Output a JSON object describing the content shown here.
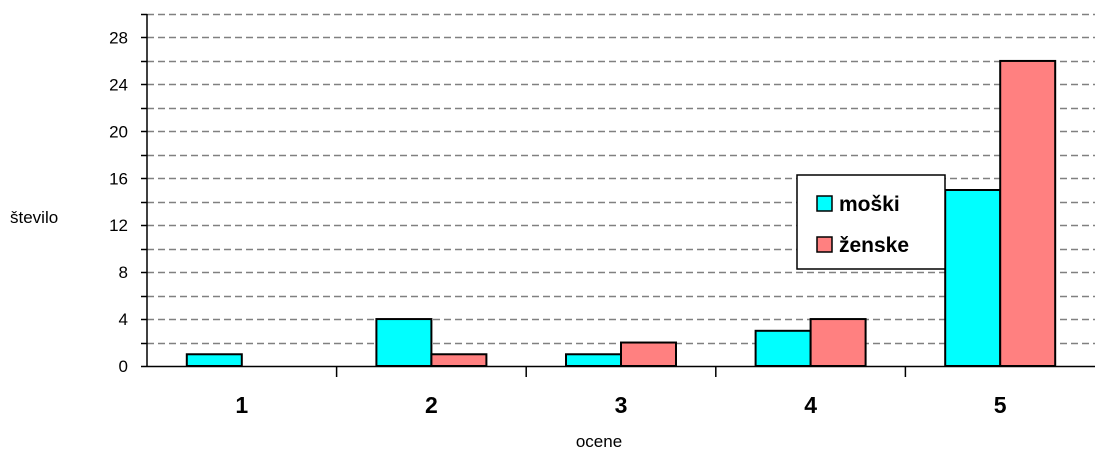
{
  "chart_data": {
    "type": "bar",
    "categories": [
      "1",
      "2",
      "3",
      "4",
      "5"
    ],
    "series": [
      {
        "name": "moški",
        "values": [
          1,
          4,
          1,
          3,
          15
        ],
        "color": "#00ffff"
      },
      {
        "name": "ženske",
        "values": [
          0,
          1,
          2,
          4,
          26
        ],
        "color": "#ff8080"
      }
    ],
    "xlabel": "ocene",
    "ylabel": "število",
    "ylim": [
      0,
      30
    ],
    "yticks": [
      "0",
      "4",
      "8",
      "12",
      "16",
      "20",
      "24",
      "28"
    ],
    "grid": true,
    "grid_style": "dashed",
    "legend_position": "right"
  }
}
